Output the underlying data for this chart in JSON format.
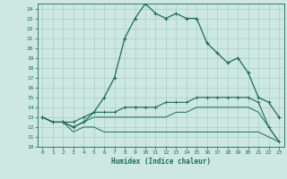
{
  "xlabel": "Humidex (Indice chaleur)",
  "xlim": [
    -0.5,
    23.5
  ],
  "ylim": [
    10,
    24.5
  ],
  "yticks": [
    10,
    11,
    12,
    13,
    14,
    15,
    16,
    17,
    18,
    19,
    20,
    21,
    22,
    23,
    24
  ],
  "xticks": [
    0,
    1,
    2,
    3,
    4,
    5,
    6,
    7,
    8,
    9,
    10,
    11,
    12,
    13,
    14,
    15,
    16,
    17,
    18,
    19,
    20,
    21,
    22,
    23
  ],
  "bg_color": "#cce8e0",
  "grid_color": "#aacccc",
  "line_color": "#1a6b5a",
  "series": {
    "line1_x": [
      0,
      1,
      2,
      3,
      4,
      5,
      6,
      7,
      8,
      9,
      10,
      11,
      12,
      13,
      14,
      15,
      16,
      17,
      18,
      19,
      20,
      21,
      22,
      23
    ],
    "line1_y": [
      13.0,
      12.5,
      12.5,
      12.0,
      12.5,
      13.5,
      15.0,
      17.0,
      21.0,
      23.0,
      24.5,
      23.5,
      23.0,
      23.5,
      23.0,
      23.0,
      20.5,
      19.5,
      18.5,
      19.0,
      17.5,
      15.0,
      14.5,
      13.0
    ],
    "line2_x": [
      0,
      1,
      2,
      3,
      4,
      5,
      6,
      7,
      8,
      9,
      10,
      11,
      12,
      13,
      14,
      15,
      16,
      17,
      18,
      19,
      20,
      21,
      22,
      23
    ],
    "line2_y": [
      13.0,
      12.5,
      12.5,
      12.5,
      13.0,
      13.5,
      13.5,
      13.5,
      14.0,
      14.0,
      14.0,
      14.0,
      14.5,
      14.5,
      14.5,
      15.0,
      15.0,
      15.0,
      15.0,
      15.0,
      15.0,
      14.5,
      12.0,
      10.5
    ],
    "line3_x": [
      0,
      1,
      2,
      3,
      4,
      5,
      6,
      7,
      8,
      9,
      10,
      11,
      12,
      13,
      14,
      15,
      16,
      17,
      18,
      19,
      20,
      21,
      22,
      23
    ],
    "line3_y": [
      13.0,
      12.5,
      12.5,
      12.0,
      12.5,
      13.0,
      13.0,
      13.0,
      13.0,
      13.0,
      13.0,
      13.0,
      13.0,
      13.5,
      13.5,
      14.0,
      14.0,
      14.0,
      14.0,
      14.0,
      14.0,
      13.5,
      12.0,
      10.5
    ],
    "line4_x": [
      0,
      1,
      2,
      3,
      4,
      5,
      6,
      7,
      8,
      9,
      10,
      11,
      12,
      13,
      14,
      15,
      16,
      17,
      18,
      19,
      20,
      21,
      22,
      23
    ],
    "line4_y": [
      13.0,
      12.5,
      12.5,
      11.5,
      12.0,
      12.0,
      11.5,
      11.5,
      11.5,
      11.5,
      11.5,
      11.5,
      11.5,
      11.5,
      11.5,
      11.5,
      11.5,
      11.5,
      11.5,
      11.5,
      11.5,
      11.5,
      11.0,
      10.5
    ]
  }
}
